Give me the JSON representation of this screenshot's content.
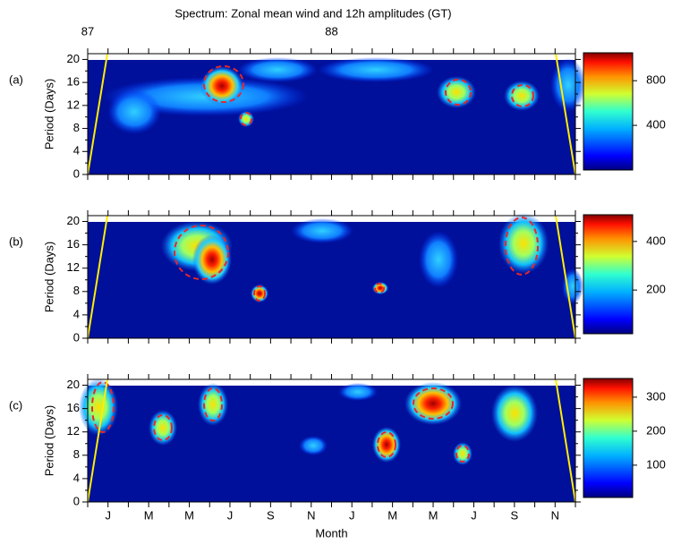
{
  "chart_data": [
    {
      "type": "heatmap",
      "title": "Spectrum: Zonal mean wind and 12h amplitudes (GT)",
      "panel_label": "(a)",
      "y_label": "Period (Days)",
      "ylim": [
        0,
        21
      ],
      "yticks": [
        0,
        4,
        8,
        12,
        16,
        20
      ],
      "colorbar_lim": [
        0,
        1050
      ],
      "colorbar_ticks": [
        400,
        800
      ],
      "top_ticks": [
        {
          "value": 0,
          "label": "87"
        },
        {
          "value": 12,
          "label": "88"
        }
      ]
    },
    {
      "type": "heatmap",
      "panel_label": "(b)",
      "y_label": "Period (Days)",
      "ylim": [
        0,
        21
      ],
      "yticks": [
        0,
        4,
        8,
        12,
        16,
        20
      ],
      "colorbar_lim": [
        20,
        510
      ],
      "colorbar_ticks": [
        200,
        400
      ]
    },
    {
      "type": "heatmap",
      "panel_label": "(c)",
      "y_label": "Period (Days)",
      "ylim": [
        0,
        21
      ],
      "yticks": [
        0,
        4,
        8,
        12,
        16,
        20
      ],
      "colorbar_lim": [
        5,
        355
      ],
      "colorbar_ticks": [
        100,
        200,
        300
      ],
      "categories": [
        null,
        "J",
        null,
        "M",
        null,
        "M",
        null,
        "J",
        null,
        "S",
        null,
        "N",
        null,
        "J",
        null,
        "M",
        null,
        "M",
        null,
        "J",
        null,
        "S",
        null,
        "N",
        null
      ],
      "x_label": "Month"
    }
  ]
}
